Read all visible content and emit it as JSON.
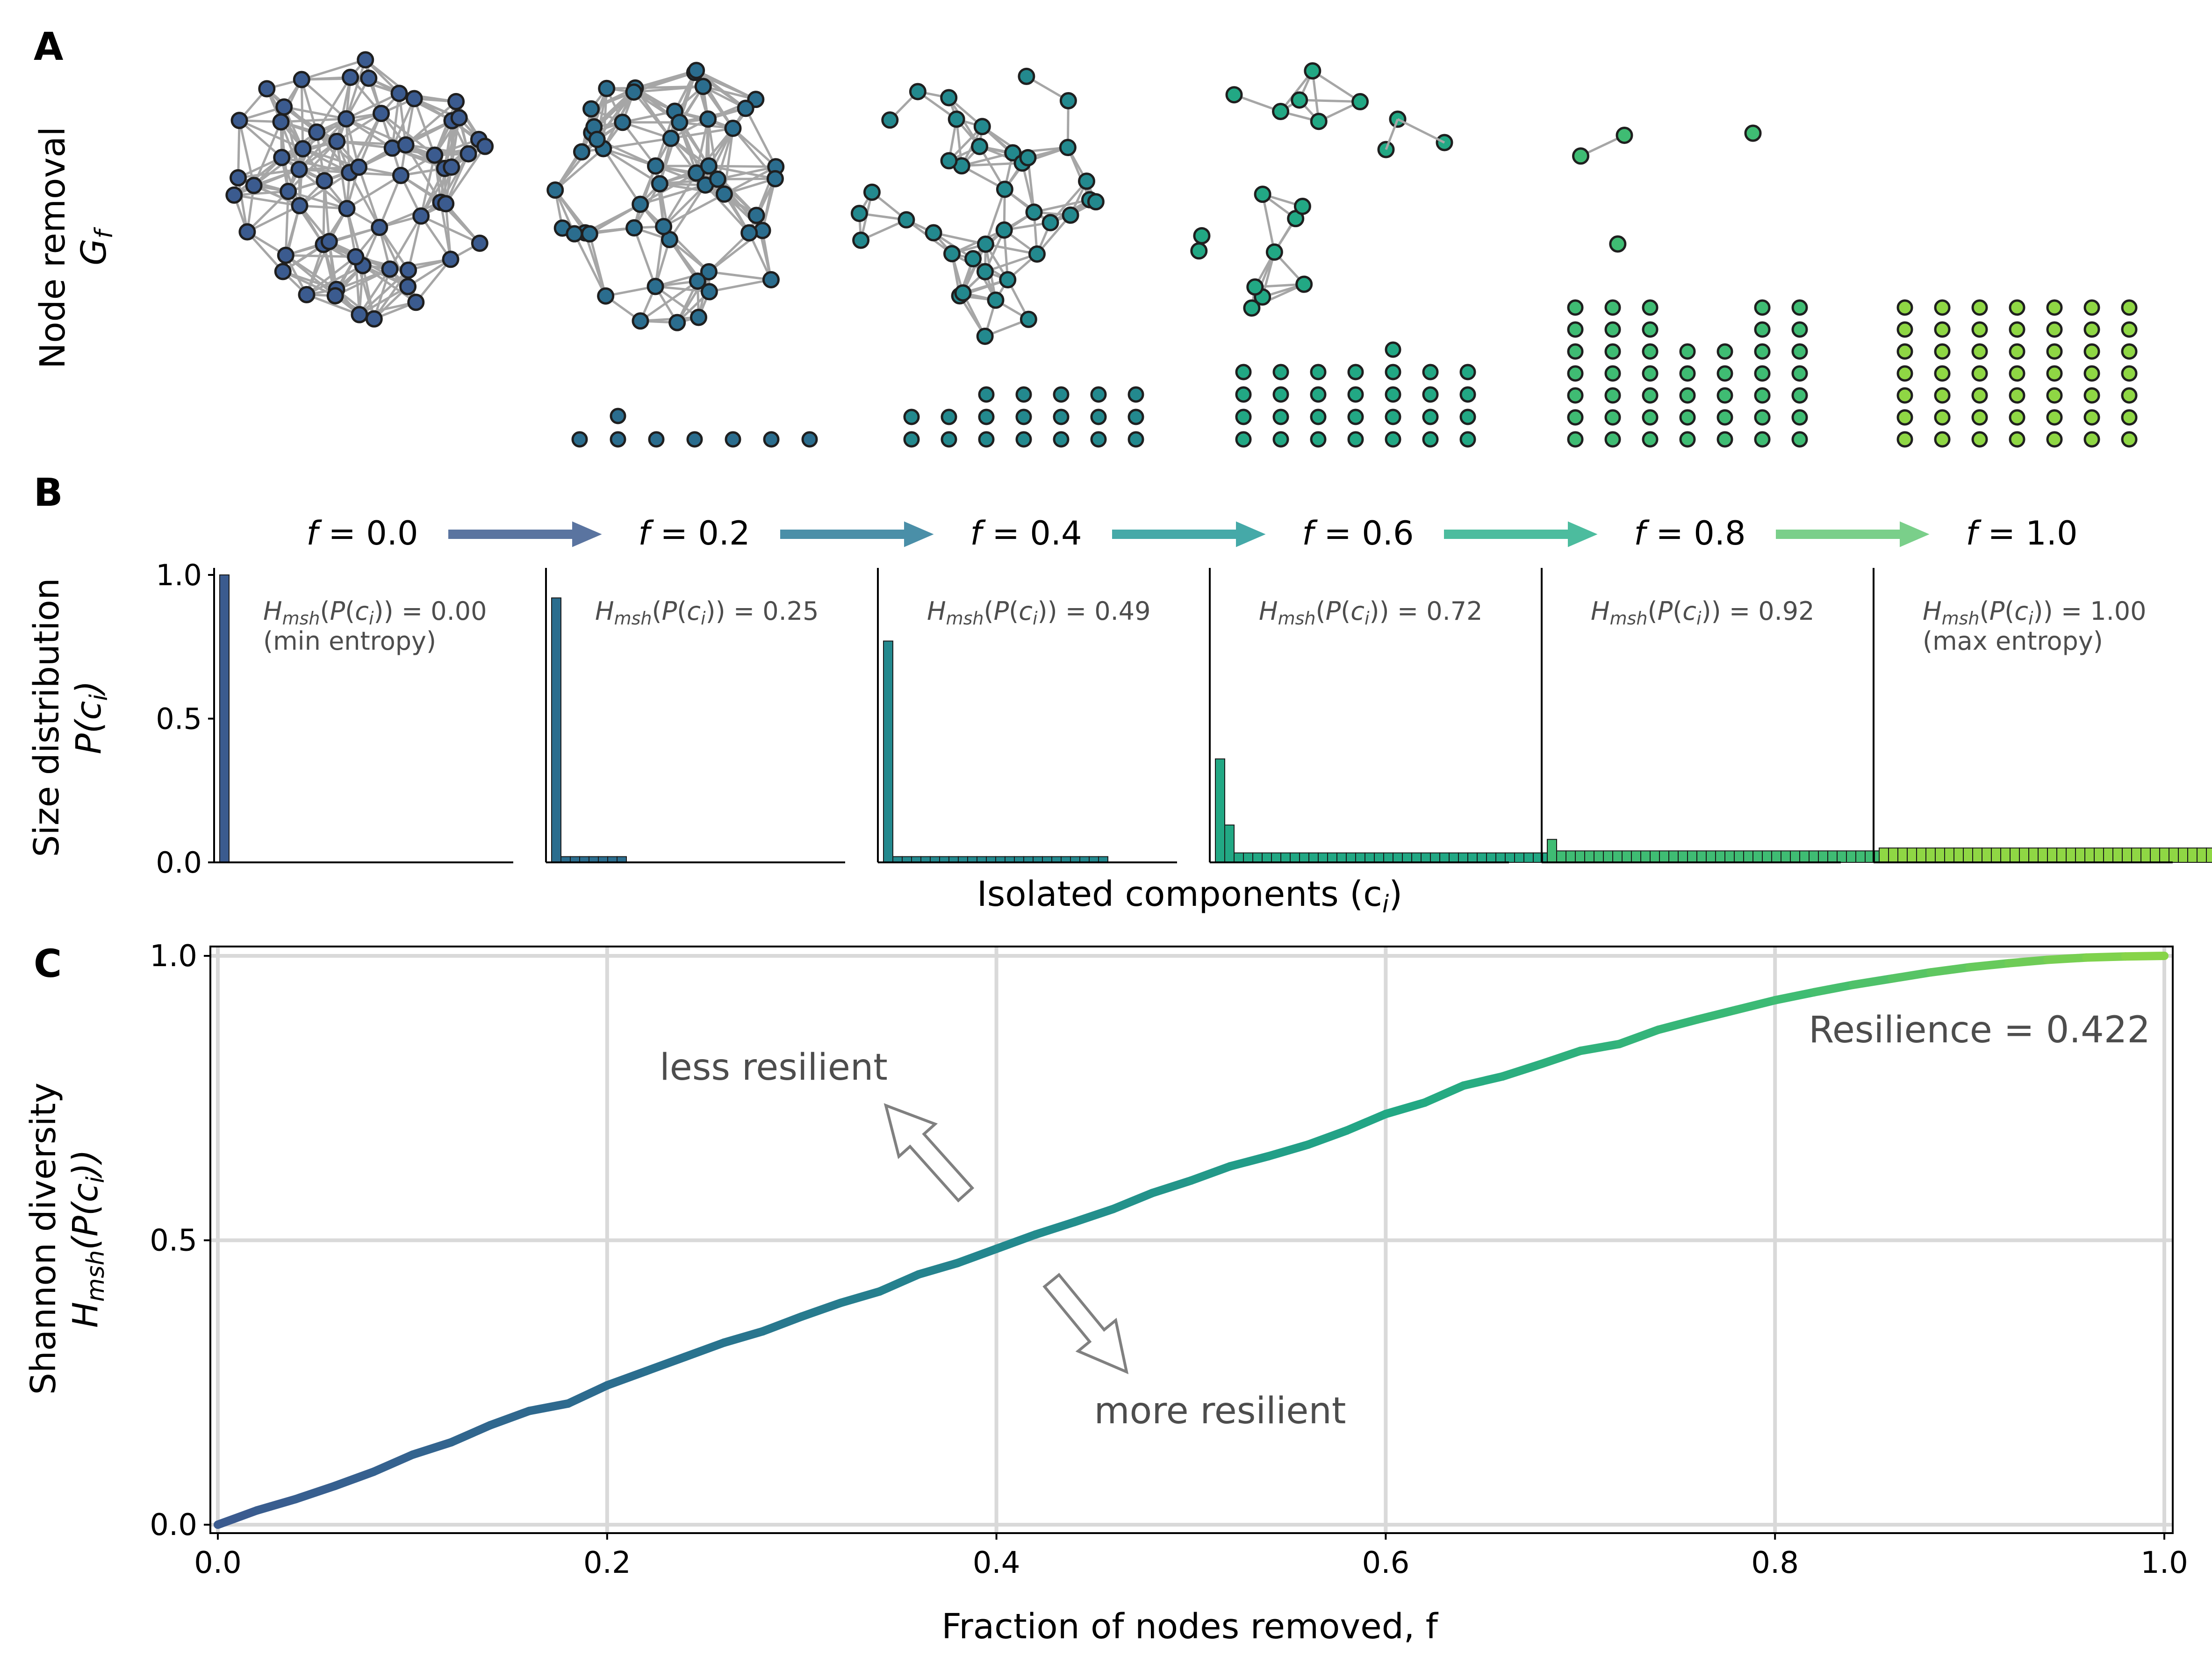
{
  "panel_labels": {
    "a": "A",
    "b": "B",
    "c": "C"
  },
  "panel_a": {
    "ylabel_line1": "Node removal",
    "ylabel_line2": "G",
    "ylabel_line2_sub": "f",
    "colors": [
      "#3b5b8f",
      "#2b6d8e",
      "#23898e",
      "#22a884",
      "#3fbc73",
      "#8fd744"
    ]
  },
  "panel_b": {
    "ylabel_line1": "Size distribution",
    "ylabel_line2": "P(c",
    "ylabel_line2_sub": "i",
    "ylabel_line2_end": ")",
    "xlabel": "Isolated components (c",
    "xlabel_sub": "i",
    "xlabel_end": ")",
    "f_labels": [
      "f = 0.0",
      "f = 0.2",
      "f = 0.4",
      "f = 0.6",
      "f = 0.8",
      "f = 1.0"
    ],
    "entropy_labels": [
      "H_msh(P(c_i)) = 0.00",
      "H_msh(P(c_i)) = 0.25",
      "H_msh(P(c_i)) = 0.49",
      "H_msh(P(c_i)) = 0.72",
      "H_msh(P(c_i)) = 0.92",
      "H_msh(P(c_i)) = 1.00"
    ],
    "entropy_values": [
      "0.00",
      "0.25",
      "0.49",
      "0.72",
      "0.92",
      "1.00"
    ],
    "entropy_notes": [
      "(min entropy)",
      "",
      "",
      "",
      "",
      "(max entropy)"
    ],
    "y_ticks": [
      "0.0",
      "0.5",
      "1.0"
    ],
    "colors": [
      "#3b5b8f",
      "#2b6d8e",
      "#23898e",
      "#22a884",
      "#3fbc73",
      "#8fd744"
    ],
    "arrow_colors": [
      "#5a74a0",
      "#4a8fa8",
      "#45a9a8",
      "#4cbc9e",
      "#7acf8a"
    ]
  },
  "panel_c": {
    "ylabel_line1": "Shannon diversity",
    "ylabel_line2": "H",
    "ylabel_line2_sub": "msh",
    "ylabel_line2_end": "(P(c",
    "ylabel_line2_sub2": "i",
    "ylabel_line2_end2": "))",
    "xlabel": "Fraction of nodes removed, f",
    "resilience_text": "Resilience = 0.422",
    "less_resilient": "less resilient",
    "more_resilient": "more resilient",
    "x_ticks": [
      "0.0",
      "0.2",
      "0.4",
      "0.6",
      "0.8",
      "1.0"
    ],
    "y_ticks": [
      "0.0",
      "0.5",
      "1.0"
    ]
  },
  "chart_data": [
    {
      "type": "bar",
      "title": "",
      "xlabel": "Isolated components (c_i)",
      "ylabel": "Size distribution P(c_i)",
      "ylim": [
        0,
        1.0
      ],
      "panels": [
        {
          "f": 0.0,
          "entropy": 0.0,
          "values": [
            1.0
          ]
        },
        {
          "f": 0.2,
          "entropy": 0.25,
          "values": [
            0.92,
            0.02,
            0.02,
            0.02,
            0.02,
            0.02,
            0.02,
            0.02
          ]
        },
        {
          "f": 0.4,
          "entropy": 0.49,
          "values": [
            0.77,
            0.02,
            0.02,
            0.02,
            0.02,
            0.02,
            0.02,
            0.02,
            0.02,
            0.02,
            0.02,
            0.02,
            0.02,
            0.02,
            0.02,
            0.02,
            0.02,
            0.02,
            0.02,
            0.02,
            0.02,
            0.02,
            0.02,
            0.02
          ]
        },
        {
          "f": 0.6,
          "entropy": 0.72,
          "values": [
            0.36,
            0.13,
            0.033,
            0.033,
            0.033,
            0.033,
            0.033,
            0.033,
            0.033,
            0.033,
            0.033,
            0.033,
            0.033,
            0.033,
            0.033,
            0.033,
            0.033,
            0.033,
            0.033,
            0.033,
            0.033,
            0.033,
            0.033,
            0.033,
            0.033,
            0.033,
            0.033,
            0.033,
            0.033,
            0.033,
            0.033,
            0.033,
            0.033,
            0.033,
            0.033,
            0.033,
            0.033,
            0.033,
            0.033
          ]
        },
        {
          "f": 0.8,
          "entropy": 0.92,
          "values": [
            0.08,
            0.04,
            0.04,
            0.04,
            0.04,
            0.04,
            0.04,
            0.04,
            0.04,
            0.04,
            0.04,
            0.04,
            0.04,
            0.04,
            0.04,
            0.04,
            0.04,
            0.04,
            0.04,
            0.04,
            0.04,
            0.04,
            0.04,
            0.04,
            0.04,
            0.04,
            0.04,
            0.04,
            0.04,
            0.04,
            0.04,
            0.04,
            0.04,
            0.04,
            0.04,
            0.04,
            0.04,
            0.04,
            0.04,
            0.04,
            0.04,
            0.04,
            0.04
          ]
        },
        {
          "f": 1.0,
          "entropy": 1.0,
          "values": [
            0.05,
            0.05,
            0.05,
            0.05,
            0.05,
            0.05,
            0.05,
            0.05,
            0.05,
            0.05,
            0.05,
            0.05,
            0.05,
            0.05,
            0.05,
            0.05,
            0.05,
            0.05,
            0.05,
            0.05,
            0.05,
            0.05,
            0.05,
            0.05,
            0.05,
            0.05,
            0.05,
            0.05,
            0.05,
            0.05,
            0.05,
            0.05,
            0.05,
            0.05,
            0.05,
            0.05,
            0.05,
            0.05,
            0.05,
            0.05,
            0.05,
            0.05,
            0.05,
            0.05,
            0.05,
            0.05,
            0.05,
            0.05,
            0.05,
            0.05
          ]
        }
      ]
    },
    {
      "type": "line",
      "title": "",
      "xlabel": "Fraction of nodes removed, f",
      "ylabel": "Shannon diversity H_msh(P(c_i))",
      "xlim": [
        0.0,
        1.0
      ],
      "ylim": [
        0.0,
        1.0
      ],
      "grid": true,
      "x": [
        0.0,
        0.02,
        0.04,
        0.06,
        0.08,
        0.1,
        0.12,
        0.14,
        0.16,
        0.18,
        0.2,
        0.22,
        0.24,
        0.26,
        0.28,
        0.3,
        0.32,
        0.34,
        0.36,
        0.38,
        0.4,
        0.42,
        0.44,
        0.46,
        0.48,
        0.5,
        0.52,
        0.54,
        0.56,
        0.58,
        0.6,
        0.62,
        0.64,
        0.66,
        0.68,
        0.7,
        0.72,
        0.74,
        0.76,
        0.78,
        0.8,
        0.82,
        0.84,
        0.86,
        0.88,
        0.9,
        0.92,
        0.94,
        0.96,
        0.98,
        1.0
      ],
      "series": [
        {
          "values": [
            0.0,
            0.025,
            0.045,
            0.068,
            0.093,
            0.123,
            0.145,
            0.175,
            0.2,
            0.213,
            0.245,
            0.27,
            0.295,
            0.32,
            0.34,
            0.366,
            0.39,
            0.41,
            0.44,
            0.46,
            0.485,
            0.51,
            0.532,
            0.555,
            0.583,
            0.605,
            0.63,
            0.648,
            0.668,
            0.693,
            0.722,
            0.742,
            0.772,
            0.788,
            0.81,
            0.833,
            0.845,
            0.87,
            0.888,
            0.905,
            0.922,
            0.936,
            0.949,
            0.96,
            0.971,
            0.98,
            0.987,
            0.993,
            0.997,
            0.999,
            1.0
          ]
        }
      ],
      "annotations": [
        "Resilience = 0.422",
        "less resilient",
        "more resilient"
      ]
    }
  ]
}
